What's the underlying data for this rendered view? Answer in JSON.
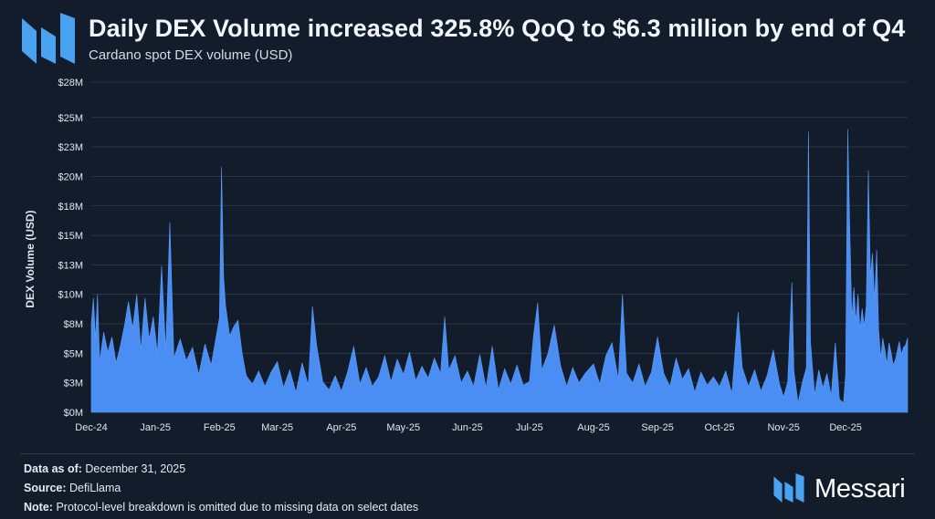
{
  "header": {
    "title": "Daily DEX Volume increased 325.8% QoQ to $6.3 million by end of Q4",
    "subtitle": "Cardano spot DEX volume (USD)"
  },
  "footer": {
    "data_as_of_label": "Data as of:",
    "data_as_of_value": "December 31, 2025",
    "source_label": "Source:",
    "source_value": "DefiLlama",
    "note_label": "Note:",
    "note_value": "Protocol-level breakdown is omitted due to missing data on select dates"
  },
  "brand": {
    "name": "Messari"
  },
  "colors": {
    "background": "#121c2b",
    "area": "#4a8ef4",
    "grid": "#3a4658",
    "accent": "#4aa3f0"
  },
  "chart_data": {
    "type": "area",
    "title": "Daily DEX Volume increased 325.8% QoQ to $6.3 million by end of Q4",
    "subtitle": "Cardano spot DEX volume (USD)",
    "xlabel": "",
    "ylabel": "DEX Volume (USD)",
    "ylim": [
      0,
      28000000
    ],
    "grid": true,
    "legend": "none",
    "y_ticks": [
      {
        "value": 0,
        "label": "$0M"
      },
      {
        "value": 2500000,
        "label": "$3M"
      },
      {
        "value": 5000000,
        "label": "$5M"
      },
      {
        "value": 7500000,
        "label": "$8M"
      },
      {
        "value": 10000000,
        "label": "$10M"
      },
      {
        "value": 12500000,
        "label": "$13M"
      },
      {
        "value": 15000000,
        "label": "$15M"
      },
      {
        "value": 17500000,
        "label": "$18M"
      },
      {
        "value": 20000000,
        "label": "$20M"
      },
      {
        "value": 22500000,
        "label": "$23M"
      },
      {
        "value": 25000000,
        "label": "$25M"
      },
      {
        "value": 28000000,
        "label": "$28M"
      }
    ],
    "x_ticks": [
      {
        "date": "2024-12-01",
        "label": "Dec-24"
      },
      {
        "date": "2025-01-01",
        "label": "Jan-25"
      },
      {
        "date": "2025-02-01",
        "label": "Feb-25"
      },
      {
        "date": "2025-03-01",
        "label": "Mar-25"
      },
      {
        "date": "2025-04-01",
        "label": "Apr-25"
      },
      {
        "date": "2025-05-01",
        "label": "May-25"
      },
      {
        "date": "2025-06-01",
        "label": "Jun-25"
      },
      {
        "date": "2025-07-01",
        "label": "Jul-25"
      },
      {
        "date": "2025-08-01",
        "label": "Aug-25"
      },
      {
        "date": "2025-09-01",
        "label": "Sep-25"
      },
      {
        "date": "2025-10-01",
        "label": "Oct-25"
      },
      {
        "date": "2025-11-01",
        "label": "Nov-25"
      },
      {
        "date": "2025-12-01",
        "label": "Dec-25"
      }
    ],
    "x_range": [
      "2024-12-01",
      "2025-12-31"
    ],
    "series": [
      {
        "values_usd_millions": [
          [
            "2024-12-01",
            7.5
          ],
          [
            "2024-12-02",
            9.7
          ],
          [
            "2024-12-03",
            6.2
          ],
          [
            "2024-12-04",
            10.0
          ],
          [
            "2024-12-05",
            4.3
          ],
          [
            "2024-12-07",
            6.8
          ],
          [
            "2024-12-09",
            5.1
          ],
          [
            "2024-12-11",
            6.4
          ],
          [
            "2024-12-13",
            4.2
          ],
          [
            "2024-12-15",
            5.6
          ],
          [
            "2024-12-17",
            7.3
          ],
          [
            "2024-12-19",
            9.4
          ],
          [
            "2024-12-21",
            7.1
          ],
          [
            "2024-12-23",
            10.0
          ],
          [
            "2024-12-25",
            5.3
          ],
          [
            "2024-12-27",
            9.7
          ],
          [
            "2024-12-29",
            6.2
          ],
          [
            "2024-12-31",
            8.1
          ],
          [
            "2025-01-02",
            5.0
          ],
          [
            "2025-01-04",
            12.4
          ],
          [
            "2025-01-06",
            5.2
          ],
          [
            "2025-01-08",
            16.1
          ],
          [
            "2025-01-10",
            4.6
          ],
          [
            "2025-01-13",
            6.2
          ],
          [
            "2025-01-16",
            4.4
          ],
          [
            "2025-01-19",
            5.5
          ],
          [
            "2025-01-22",
            3.2
          ],
          [
            "2025-01-25",
            5.8
          ],
          [
            "2025-01-28",
            4.0
          ],
          [
            "2025-02-01",
            8.0
          ],
          [
            "2025-02-02",
            20.8
          ],
          [
            "2025-02-03",
            11.5
          ],
          [
            "2025-02-04",
            9.0
          ],
          [
            "2025-02-06",
            6.5
          ],
          [
            "2025-02-08",
            7.3
          ],
          [
            "2025-02-10",
            7.8
          ],
          [
            "2025-02-12",
            5.0
          ],
          [
            "2025-02-14",
            3.1
          ],
          [
            "2025-02-17",
            2.4
          ],
          [
            "2025-02-20",
            3.5
          ],
          [
            "2025-02-23",
            2.2
          ],
          [
            "2025-02-26",
            3.4
          ],
          [
            "2025-03-01",
            4.3
          ],
          [
            "2025-03-04",
            2.1
          ],
          [
            "2025-03-07",
            3.6
          ],
          [
            "2025-03-10",
            1.7
          ],
          [
            "2025-03-13",
            4.2
          ],
          [
            "2025-03-16",
            2.3
          ],
          [
            "2025-03-18",
            9.0
          ],
          [
            "2025-03-20",
            5.7
          ],
          [
            "2025-03-23",
            2.6
          ],
          [
            "2025-03-26",
            1.9
          ],
          [
            "2025-03-29",
            3.1
          ],
          [
            "2025-04-01",
            1.8
          ],
          [
            "2025-04-04",
            3.4
          ],
          [
            "2025-04-07",
            5.6
          ],
          [
            "2025-04-10",
            2.4
          ],
          [
            "2025-04-13",
            3.8
          ],
          [
            "2025-04-16",
            2.2
          ],
          [
            "2025-04-19",
            3.0
          ],
          [
            "2025-04-22",
            4.8
          ],
          [
            "2025-04-25",
            2.6
          ],
          [
            "2025-04-28",
            4.5
          ],
          [
            "2025-05-01",
            3.2
          ],
          [
            "2025-05-04",
            5.1
          ],
          [
            "2025-05-07",
            2.7
          ],
          [
            "2025-05-10",
            3.9
          ],
          [
            "2025-05-13",
            2.9
          ],
          [
            "2025-05-16",
            4.6
          ],
          [
            "2025-05-19",
            3.3
          ],
          [
            "2025-05-21",
            8.1
          ],
          [
            "2025-05-23",
            3.6
          ],
          [
            "2025-05-26",
            4.8
          ],
          [
            "2025-05-29",
            2.5
          ],
          [
            "2025-06-01",
            3.5
          ],
          [
            "2025-06-04",
            2.2
          ],
          [
            "2025-06-07",
            4.9
          ],
          [
            "2025-06-10",
            2.1
          ],
          [
            "2025-06-13",
            5.6
          ],
          [
            "2025-06-16",
            1.9
          ],
          [
            "2025-06-19",
            3.7
          ],
          [
            "2025-06-22",
            2.4
          ],
          [
            "2025-06-25",
            4.0
          ],
          [
            "2025-06-28",
            2.3
          ],
          [
            "2025-07-01",
            2.6
          ],
          [
            "2025-07-03",
            6.5
          ],
          [
            "2025-07-05",
            9.3
          ],
          [
            "2025-07-07",
            3.6
          ],
          [
            "2025-07-10",
            5.0
          ],
          [
            "2025-07-13",
            7.4
          ],
          [
            "2025-07-16",
            4.0
          ],
          [
            "2025-07-19",
            2.2
          ],
          [
            "2025-07-22",
            3.8
          ],
          [
            "2025-07-25",
            2.5
          ],
          [
            "2025-07-28",
            3.3
          ],
          [
            "2025-08-01",
            4.1
          ],
          [
            "2025-08-04",
            2.4
          ],
          [
            "2025-08-07",
            4.8
          ],
          [
            "2025-08-10",
            5.9
          ],
          [
            "2025-08-13",
            2.8
          ],
          [
            "2025-08-15",
            10.0
          ],
          [
            "2025-08-17",
            3.3
          ],
          [
            "2025-08-20",
            2.5
          ],
          [
            "2025-08-23",
            4.1
          ],
          [
            "2025-08-26",
            2.2
          ],
          [
            "2025-08-29",
            3.4
          ],
          [
            "2025-09-01",
            6.4
          ],
          [
            "2025-09-04",
            3.3
          ],
          [
            "2025-09-07",
            2.2
          ],
          [
            "2025-09-10",
            4.6
          ],
          [
            "2025-09-13",
            2.8
          ],
          [
            "2025-09-16",
            3.7
          ],
          [
            "2025-09-19",
            1.7
          ],
          [
            "2025-09-22",
            3.4
          ],
          [
            "2025-09-25",
            2.3
          ],
          [
            "2025-09-28",
            3.0
          ],
          [
            "2025-10-01",
            2.2
          ],
          [
            "2025-10-04",
            3.5
          ],
          [
            "2025-10-07",
            1.6
          ],
          [
            "2025-10-10",
            8.5
          ],
          [
            "2025-10-12",
            3.8
          ],
          [
            "2025-10-15",
            2.2
          ],
          [
            "2025-10-18",
            3.6
          ],
          [
            "2025-10-21",
            1.8
          ],
          [
            "2025-10-24",
            3.1
          ],
          [
            "2025-10-27",
            5.3
          ],
          [
            "2025-10-30",
            2.4
          ],
          [
            "2025-11-01",
            1.3
          ],
          [
            "2025-11-03",
            2.6
          ],
          [
            "2025-11-05",
            11.0
          ],
          [
            "2025-11-06",
            3.5
          ],
          [
            "2025-11-08",
            0.8
          ],
          [
            "2025-11-10",
            2.5
          ],
          [
            "2025-11-12",
            3.8
          ],
          [
            "2025-11-13",
            23.8
          ],
          [
            "2025-11-14",
            6.0
          ],
          [
            "2025-11-16",
            1.5
          ],
          [
            "2025-11-18",
            3.6
          ],
          [
            "2025-11-20",
            2.1
          ],
          [
            "2025-11-22",
            3.3
          ],
          [
            "2025-11-24",
            1.4
          ],
          [
            "2025-11-26",
            5.9
          ],
          [
            "2025-11-28",
            1.1
          ],
          [
            "2025-11-30",
            0.8
          ],
          [
            "2025-12-01",
            3.2
          ],
          [
            "2025-12-02",
            24.0
          ],
          [
            "2025-12-03",
            15.8
          ],
          [
            "2025-12-04",
            8.0
          ],
          [
            "2025-12-05",
            10.6
          ],
          [
            "2025-12-06",
            7.7
          ],
          [
            "2025-12-07",
            10.0
          ],
          [
            "2025-12-08",
            7.0
          ],
          [
            "2025-12-09",
            8.8
          ],
          [
            "2025-12-10",
            7.3
          ],
          [
            "2025-12-11",
            9.0
          ],
          [
            "2025-12-12",
            20.5
          ],
          [
            "2025-12-13",
            11.5
          ],
          [
            "2025-12-14",
            13.5
          ],
          [
            "2025-12-15",
            9.5
          ],
          [
            "2025-12-16",
            13.8
          ],
          [
            "2025-12-17",
            7.0
          ],
          [
            "2025-12-18",
            4.6
          ],
          [
            "2025-12-19",
            6.3
          ],
          [
            "2025-12-20",
            5.3
          ],
          [
            "2025-12-21",
            4.1
          ],
          [
            "2025-12-22",
            5.9
          ],
          [
            "2025-12-23",
            5.1
          ],
          [
            "2025-12-24",
            4.0
          ],
          [
            "2025-12-25",
            4.4
          ],
          [
            "2025-12-26",
            5.2
          ],
          [
            "2025-12-27",
            6.0
          ],
          [
            "2025-12-28",
            4.9
          ],
          [
            "2025-12-29",
            5.5
          ],
          [
            "2025-12-30",
            5.7
          ],
          [
            "2025-12-31",
            6.3
          ]
        ]
      }
    ]
  }
}
